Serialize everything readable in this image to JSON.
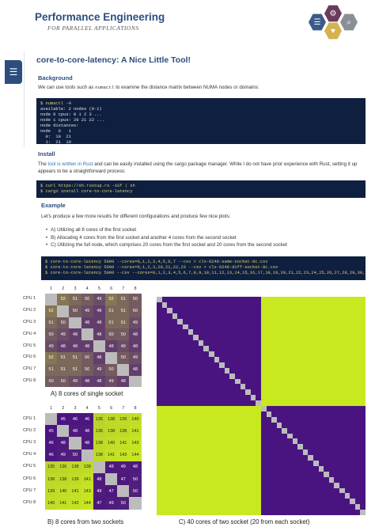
{
  "header": {
    "brand": "Performance Engineering",
    "brand_sub": "FOR PARALLEL APPLICATIONS",
    "hex_icons": [
      "menu-icon",
      "gear-icon",
      "search-icon",
      "heart-icon"
    ],
    "hex_colors": [
      "#3b5a8a",
      "#6b3b5a",
      "#d4b24c",
      "#8a8f94",
      "#c07a9f"
    ]
  },
  "side_tab": {
    "icon": "document-list-icon"
  },
  "article": {
    "title": "core-to-core-latency: A Nice Little Tool!",
    "background_heading": "Background",
    "background_text_before": "We can use tools such as ",
    "background_code": "numactl",
    "background_text_after": " to examine the distance matrix between NUMA nodes or domains:",
    "numactl_lines": [
      "$ numactl -H",
      "available: 2 nodes (0-1)",
      "node 0 cpus: 0 1 2 3 ...",
      "node 1 cpus: 20 21 22 ...",
      "node distances:",
      "node   0   1",
      "  0:  10  21",
      "  1:  21  10"
    ],
    "install_heading": "Install",
    "install_link": "tool is written in Rust",
    "install_before": "The ",
    "install_after": " and can be easily installed using the cargo package manager. While I do not have prior experience with Rust, setting it up appears to be a straightforward process:",
    "install_lines": [
      "$ curl https://sh.rustup.rs -sSf | sh",
      "$ cargo install core-to-core-latency"
    ],
    "example_heading": "Example",
    "example_intro": "Let's produce a few more results for different configurations and produce few nice plots:",
    "example_items": [
      "A) Utilizing all 8 cores of the first socket",
      "B) Allocating 4 cores from the first socket and another 4 cores from the second socket",
      "C) Utilizing the full node, which comprises 20 cores from the first socket and 20 cores from the second socket"
    ],
    "run_lines": [
      "$ core-to-core-latency 5000 --cores=0,1,2,3,4,5,6,7 --csv > clx-6248-same-socket-8c.csv",
      "$ core-to-core-latency 5000 --cores=0,1,2,3,20,21,22,23 --csv > clx-6248-diff-socket-8c.csv",
      "$ core-to-core-latency 5000 --csv --cores=0,1,2,3,4,5,6,7,8,9,10,11,12,13,14,15,16,17,18,19,20,21,22,23,24,25,26,27,28,29,30,31,32,33,34,3"
    ]
  },
  "matrix_a": {
    "col_labels": [
      "1",
      "2",
      "3",
      "4",
      "5",
      "6",
      "7",
      "8"
    ],
    "row_labels": [
      "CPU 1",
      "CPU 2",
      "CPU 3",
      "CPU 4",
      "CPU 5",
      "CPU 6",
      "CPU 7",
      "CPU 8"
    ],
    "rows": [
      [
        "",
        "52",
        "51",
        "50",
        "49",
        "52",
        "51",
        "50"
      ],
      [
        "52",
        "",
        "50",
        "49",
        "48",
        "51",
        "51",
        "50"
      ],
      [
        "51",
        "50",
        "",
        "48",
        "48",
        "51",
        "51",
        "49"
      ],
      [
        "50",
        "49",
        "48",
        "",
        "48",
        "50",
        "50",
        "48"
      ],
      [
        "49",
        "48",
        "48",
        "48",
        "",
        "48",
        "49",
        "48"
      ],
      [
        "52",
        "51",
        "51",
        "50",
        "48",
        "",
        "50",
        "49"
      ],
      [
        "51",
        "51",
        "51",
        "50",
        "49",
        "50",
        "",
        "48"
      ],
      [
        "50",
        "50",
        "49",
        "48",
        "48",
        "49",
        "48",
        ""
      ]
    ],
    "caption": "A) 8 cores of single socket"
  },
  "matrix_b": {
    "col_labels": [
      "1",
      "2",
      "3",
      "4",
      "5",
      "6",
      "7",
      "8"
    ],
    "row_labels": [
      "CPU 1",
      "CPU 2",
      "CPU 3",
      "CPU 4",
      "CPU 5",
      "CPU 6",
      "CPU 7",
      "CPU 8"
    ],
    "rows": [
      [
        "",
        "45",
        "46",
        "46",
        "135",
        "138",
        "139",
        "140"
      ],
      [
        "45",
        "",
        "48",
        "48",
        "136",
        "138",
        "138",
        "141"
      ],
      [
        "46",
        "48",
        "",
        "48",
        "138",
        "140",
        "141",
        "143"
      ],
      [
        "46",
        "49",
        "50",
        "",
        "138",
        "141",
        "143",
        "144"
      ],
      [
        "135",
        "136",
        "138",
        "138",
        "",
        "48",
        "49",
        "48"
      ],
      [
        "138",
        "138",
        "139",
        "141",
        "48",
        "",
        "47",
        "50"
      ],
      [
        "139",
        "140",
        "141",
        "143",
        "49",
        "47",
        "",
        "50"
      ],
      [
        "140",
        "141",
        "142",
        "144",
        "47",
        "49",
        "50",
        ""
      ]
    ],
    "caption": "B) 8 cores from two sockets"
  },
  "matrix_c": {
    "caption": "C) 40 cores of two socket (20 from each socket)"
  },
  "colors": {
    "navy": "#2c4d7e",
    "terminal_bg": "#0f1f3f",
    "low": "#4a1480",
    "high": "#c8e820",
    "diag": "#bcbcbc"
  }
}
